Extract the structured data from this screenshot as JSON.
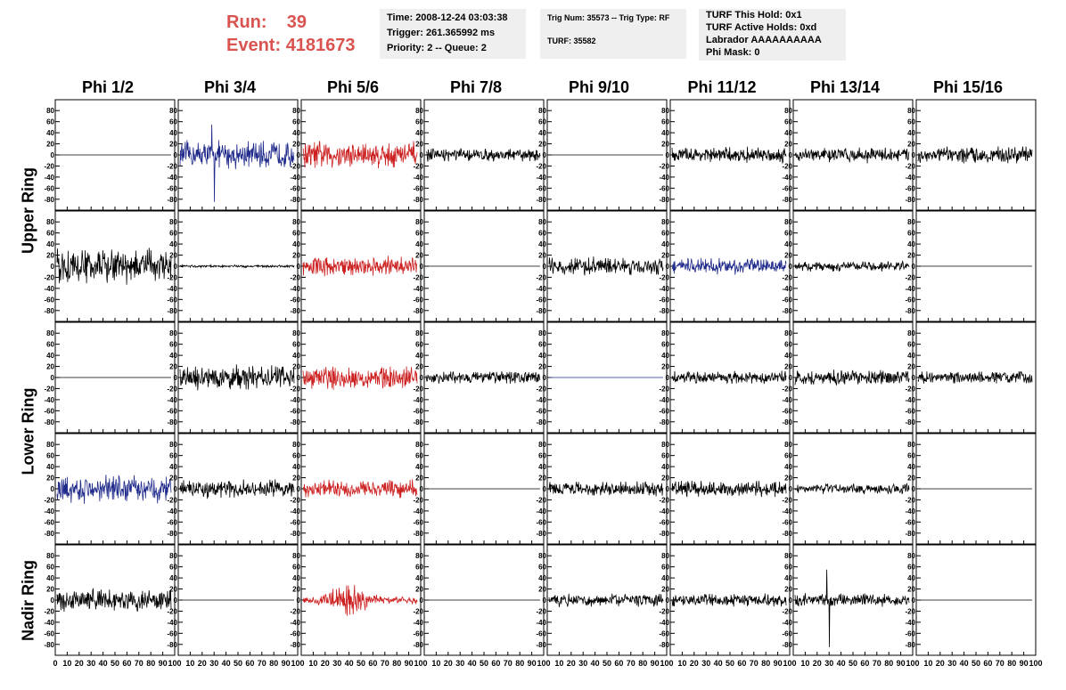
{
  "header": {
    "run_label": "Run:",
    "run_value": "39",
    "event_label": "Event:",
    "event_value": "4181673",
    "time": "Time: 2008-12-24 03:03:38",
    "trigger": "Trigger: 261.365992 ms",
    "priority": "Priority: 2 -- Queue: 2",
    "trig_num": "Trig Num: 35573 -- Trig Type: RF",
    "turf": "TURF: 35582",
    "turf_hold": "TURF This Hold: 0x1",
    "turf_active": "TURF Active Holds: 0xd",
    "labrador": "Labrador AAAAAAAAAA",
    "phi_mask": "Phi Mask: 0"
  },
  "colors": {
    "black": "#000000",
    "blue": "#1f2a8a",
    "red": "#cc2020",
    "accent": "#d9534f"
  },
  "chart_data": {
    "type": "line",
    "columns": [
      "Phi 1/2",
      "Phi 3/4",
      "Phi 5/6",
      "Phi 7/8",
      "Phi 9/10",
      "Phi 11/12",
      "Phi 13/14",
      "Phi 15/16"
    ],
    "row_groups": [
      "Upper Ring",
      "Lower Ring",
      "Nadir Ring"
    ],
    "ylim": [
      -90,
      90
    ],
    "yticks": [
      80,
      60,
      40,
      20,
      0,
      -20,
      -40,
      -60,
      -80
    ],
    "xlim": [
      0,
      100
    ],
    "xticks": [
      0,
      10,
      20,
      30,
      40,
      50,
      60,
      70,
      80,
      90,
      100
    ],
    "x_axis_labels": [
      "0 10 20 30 40 50 60 70 80 90 100",
      "10 20 30 40 50 60 70 80 90 100"
    ],
    "panels": [
      [
        {
          "a": 0,
          "c": "black"
        },
        {
          "a": 22,
          "c": "blue",
          "spike": true
        },
        {
          "a": 22,
          "c": "red"
        },
        {
          "a": 10,
          "c": "black"
        },
        {
          "a": 0,
          "c": "black"
        },
        {
          "a": 12,
          "c": "black"
        },
        {
          "a": 12,
          "c": "black"
        },
        {
          "a": 13,
          "c": "black"
        }
      ],
      [
        {
          "a": 28,
          "c": "black"
        },
        {
          "a": 2,
          "c": "black"
        },
        {
          "a": 15,
          "c": "red"
        },
        {
          "a": 0,
          "c": "black"
        },
        {
          "a": 14,
          "c": "black"
        },
        {
          "a": 12,
          "c": "blue"
        },
        {
          "a": 8,
          "c": "black"
        },
        {
          "a": 0,
          "c": "black"
        }
      ],
      [
        {
          "a": 0,
          "c": "black"
        },
        {
          "a": 20,
          "c": "black"
        },
        {
          "a": 18,
          "c": "red"
        },
        {
          "a": 10,
          "c": "black"
        },
        {
          "a": 0,
          "c": "blue"
        },
        {
          "a": 10,
          "c": "black"
        },
        {
          "a": 12,
          "c": "black"
        },
        {
          "a": 10,
          "c": "black"
        }
      ],
      [
        {
          "a": 22,
          "c": "blue"
        },
        {
          "a": 14,
          "c": "black"
        },
        {
          "a": 14,
          "c": "red"
        },
        {
          "a": 0,
          "c": "black"
        },
        {
          "a": 12,
          "c": "black"
        },
        {
          "a": 12,
          "c": "black"
        },
        {
          "a": 8,
          "c": "black"
        },
        {
          "a": 0,
          "c": "black"
        }
      ],
      [
        {
          "a": 18,
          "c": "black"
        },
        {
          "a": 0,
          "c": "black"
        },
        {
          "a": 16,
          "c": "red",
          "burst": true
        },
        {
          "a": 0,
          "c": "black"
        },
        {
          "a": 10,
          "c": "black"
        },
        {
          "a": 10,
          "c": "black"
        },
        {
          "a": 10,
          "c": "black",
          "spike": true
        },
        {
          "a": 0,
          "c": "black"
        }
      ]
    ]
  }
}
